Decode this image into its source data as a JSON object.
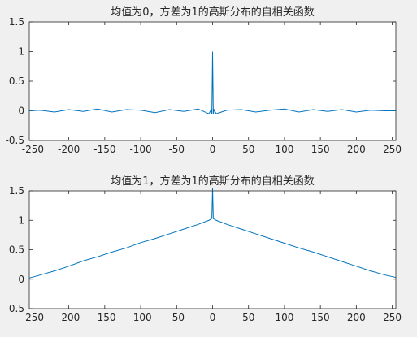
{
  "figure": {
    "background": "#f0f0f0",
    "axes_color": "#ffffff",
    "line_color": "#0072bd"
  },
  "chart_data": [
    {
      "type": "line",
      "title": "均值为0，方差为1的高斯分布的自相关函数",
      "xlabel": "",
      "ylabel": "",
      "xlim": [
        -255,
        255
      ],
      "ylim": [
        -0.5,
        1.5
      ],
      "xticks": [
        -250,
        -200,
        -150,
        -100,
        -50,
        0,
        50,
        100,
        150,
        200,
        250
      ],
      "yticks": [
        -0.5,
        0,
        0.5,
        1,
        1.5
      ],
      "grid": false,
      "series": [
        {
          "x": [
            -255,
            -240,
            -220,
            -200,
            -180,
            -160,
            -140,
            -120,
            -100,
            -80,
            -60,
            -40,
            -20,
            -5,
            -2,
            -1,
            0,
            1,
            2,
            5,
            20,
            40,
            60,
            80,
            100,
            120,
            140,
            160,
            180,
            200,
            220,
            240,
            255
          ],
          "values": [
            0,
            0.01,
            -0.02,
            0.02,
            -0.01,
            0.03,
            -0.02,
            0.02,
            0.01,
            -0.03,
            0.02,
            -0.01,
            0.03,
            -0.05,
            0.02,
            -0.06,
            1.0,
            -0.06,
            0.02,
            -0.05,
            0.01,
            0.02,
            -0.02,
            0.01,
            0.03,
            -0.02,
            0.02,
            -0.01,
            0.02,
            -0.02,
            0.01,
            0.0,
            0.0
          ]
        }
      ]
    },
    {
      "type": "line",
      "title": "均值为1，方差为1的高斯分布的自相关函数",
      "xlabel": "",
      "ylabel": "",
      "xlim": [
        -255,
        255
      ],
      "ylim": [
        -0.5,
        1.5
      ],
      "xticks": [
        -250,
        -200,
        -150,
        -100,
        -50,
        0,
        50,
        100,
        150,
        200,
        250
      ],
      "yticks": [
        -0.5,
        0,
        0.5,
        1,
        1.5
      ],
      "grid": false,
      "series": [
        {
          "x": [
            -255,
            -240,
            -220,
            -200,
            -180,
            -160,
            -140,
            -120,
            -100,
            -80,
            -60,
            -40,
            -20,
            -5,
            -1,
            0,
            1,
            5,
            20,
            40,
            60,
            80,
            100,
            120,
            140,
            160,
            180,
            200,
            220,
            240,
            255
          ],
          "values": [
            0.02,
            0.07,
            0.14,
            0.22,
            0.31,
            0.38,
            0.46,
            0.53,
            0.62,
            0.69,
            0.77,
            0.85,
            0.93,
            1.0,
            1.03,
            1.55,
            1.03,
            1.0,
            0.93,
            0.85,
            0.77,
            0.69,
            0.61,
            0.53,
            0.46,
            0.38,
            0.3,
            0.22,
            0.14,
            0.07,
            0.03
          ]
        }
      ]
    }
  ]
}
